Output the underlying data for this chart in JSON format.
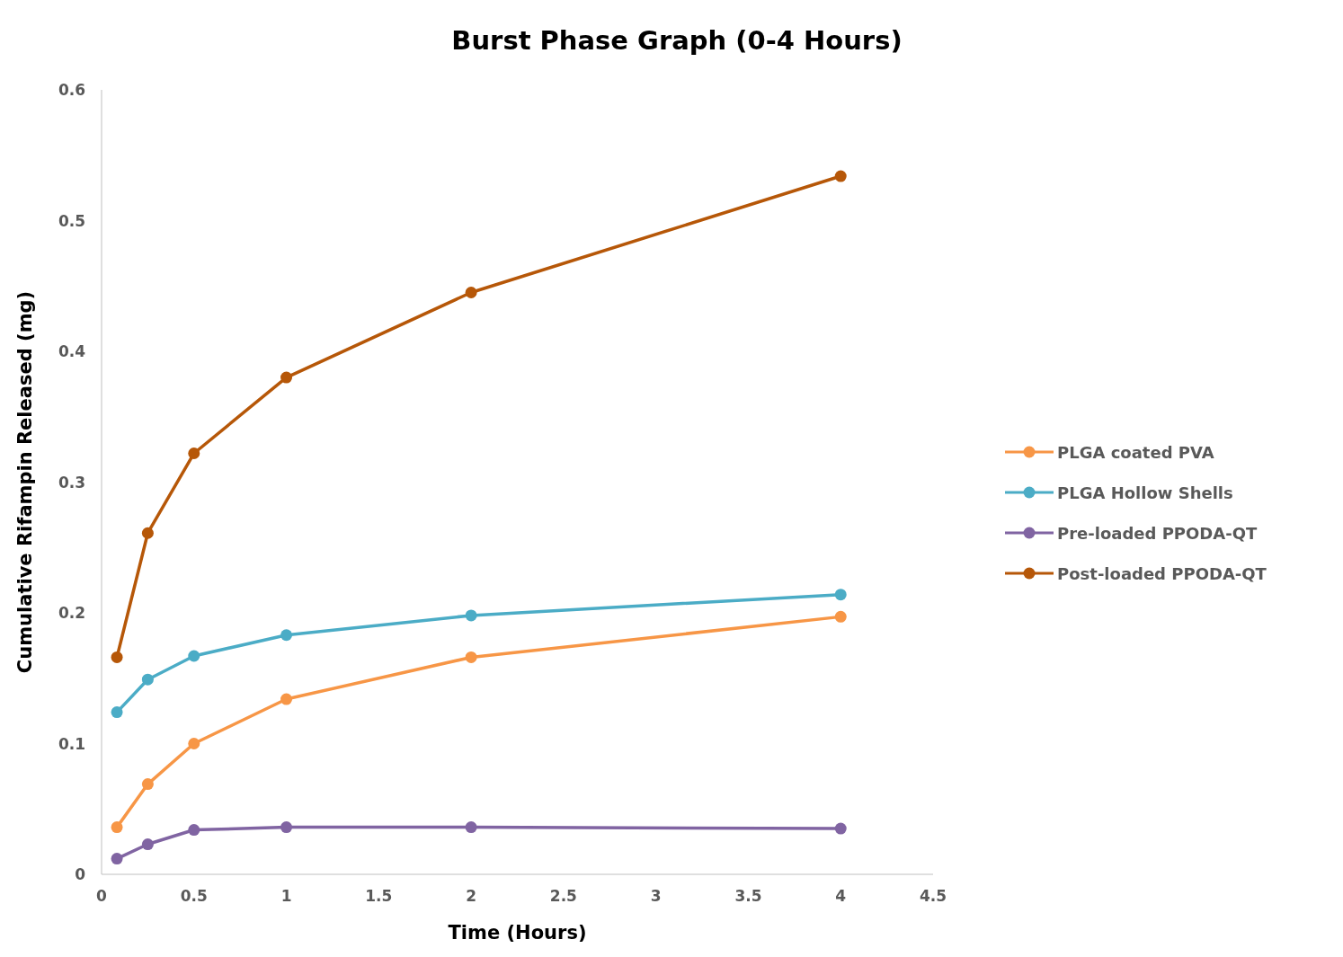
{
  "chart_data": {
    "type": "line",
    "title": "Burst Phase Graph (0-4 Hours)",
    "xlabel": "Time (Hours)",
    "ylabel": "Cumulative Rifampin Released (mg)",
    "x": [
      0.083,
      0.25,
      0.5,
      1,
      2,
      4
    ],
    "series": [
      {
        "name": "PLGA coated PVA",
        "color": "#f79646",
        "values": [
          0.036,
          0.069,
          0.1,
          0.134,
          0.166,
          0.197
        ]
      },
      {
        "name": "PLGA Hollow Shells",
        "color": "#4bacc6",
        "values": [
          0.124,
          0.149,
          0.167,
          0.183,
          0.198,
          0.214
        ]
      },
      {
        "name": "Pre-loaded PPODA-QT",
        "color": "#8064a2",
        "values": [
          0.012,
          0.023,
          0.034,
          0.036,
          0.036,
          0.035
        ]
      },
      {
        "name": "Post-loaded PPODA-QT",
        "color": "#b65708",
        "values": [
          0.166,
          0.261,
          0.322,
          0.38,
          0.445,
          0.534
        ]
      }
    ],
    "xlim": [
      0,
      4.5
    ],
    "xticks": [
      0,
      0.5,
      1,
      1.5,
      2,
      2.5,
      3,
      3.5,
      4,
      4.5
    ],
    "ylim": [
      0,
      0.6
    ],
    "yticks": [
      0,
      0.1,
      0.2,
      0.3,
      0.4,
      0.5,
      0.6
    ],
    "grid": false,
    "legend": "right",
    "marker": "circle",
    "line_style": "solid"
  }
}
